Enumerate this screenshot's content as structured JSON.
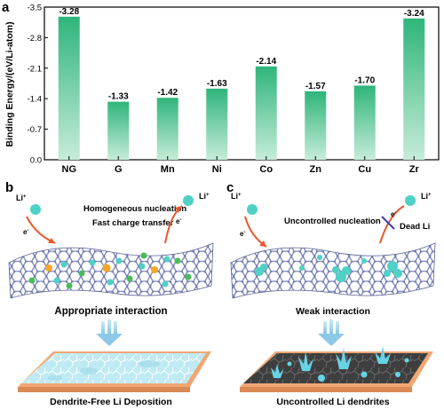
{
  "panels": {
    "a": "a",
    "b": "b",
    "c": "c"
  },
  "chart_data": {
    "type": "bar",
    "ylabel": "Binding Energy/(eV/Li-atom)",
    "categories": [
      "NG",
      "G",
      "Mn",
      "Ni",
      "Co",
      "Zn",
      "Cu",
      "Zr"
    ],
    "values": [
      -3.28,
      -1.33,
      -1.42,
      -1.63,
      -2.14,
      -1.57,
      -1.7,
      -3.24
    ],
    "value_labels": [
      "-3.28",
      "-1.33",
      "-1.42",
      "-1.63",
      "-2.14",
      "-1.57",
      "-1.70",
      "-3.24"
    ],
    "y_ticks": [
      "-3.5",
      "-2.8",
      "-2.1",
      "-1.4",
      "-0.7",
      "0.0"
    ],
    "ylim": [
      0,
      -3.5
    ],
    "inverted_axis": true,
    "bar_color_top": "#2fb57a",
    "bar_color_bottom": "#c6ecd9"
  },
  "panel_b": {
    "li_left": "Li",
    "li_right": "Li",
    "plus": "+",
    "electron_left": "e",
    "electron_right": "e",
    "minus": "-",
    "line1": "Homogeneous nucleation",
    "line2": "Fast charge transfer",
    "interaction": "Appropriate interaction",
    "caption": "Dendrite-Free Li Deposition"
  },
  "panel_c": {
    "li_left": "Li",
    "li_right": "Li",
    "plus": "+",
    "electron_left": "e",
    "electron_right": "e",
    "minus": "-",
    "nucleation": "Uncontrolled  nucleation",
    "dead_li": "Dead Li",
    "interaction": "Weak interaction",
    "caption": "Uncontrolled Li dendrites"
  },
  "colors": {
    "graphene": "#7c86b8",
    "graphene_dark": "#5a6194",
    "li_ion": "#4fd1c5",
    "dopant_orange": "#f5a623",
    "dopant_green": "#4cbb5a",
    "arrow": "#e8582a",
    "substrate": "#f0a774",
    "film_light": "#bfeaf3",
    "film_dark": "#4a4a4a",
    "down_arrow": "#9fd3ea"
  }
}
